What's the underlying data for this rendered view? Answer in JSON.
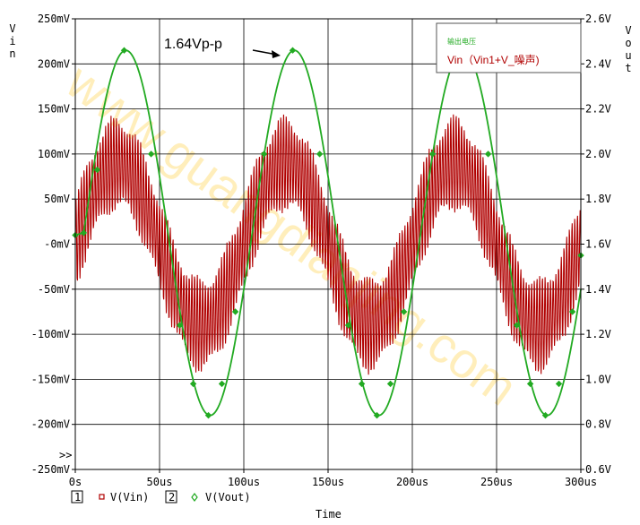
{
  "chart_data": {
    "type": "line",
    "xlabel": "Time",
    "xlim": [
      0,
      300
    ],
    "x_ticks": [
      "0s",
      "50us",
      "100us",
      "150us",
      "200us",
      "250us",
      "300us"
    ],
    "left_axis": {
      "label": "V i n",
      "ylim": [
        -250,
        250
      ],
      "ticks": [
        "250mV",
        "200mV",
        "150mV",
        "100mV",
        "50mV",
        "-0mV",
        "-50mV",
        "-100mV",
        "-150mV",
        "-200mV",
        "-250mV"
      ]
    },
    "right_axis": {
      "label": "V o u t",
      "ylim": [
        0.6,
        2.6
      ],
      "ticks": [
        "2.6V",
        "2.4V",
        "2.2V",
        "2.0V",
        "1.8V",
        "1.6V",
        "1.4V",
        "1.2V",
        "1.0V",
        "0.8V",
        "0.6V"
      ]
    },
    "grid": true,
    "annotation": "1.64Vp-p",
    "inset_legend": {
      "line1": "输出电压",
      "line2": "Vin（Vin1+V_噪声)"
    },
    "legend": [
      {
        "index": "1",
        "marker": "□",
        "name": "V(Vin)"
      },
      {
        "index": "2",
        "marker": "◇",
        "name": "V(Vout)"
      }
    ],
    "scroll_marker": ">>",
    "watermark": "www.guangdianjing.com",
    "series": [
      {
        "name": "V(Vin)",
        "axis": "left",
        "color": "#b00000",
        "description_values": {
          "signal_amplitude_mV": 90,
          "signal_period_us": 100,
          "signal_peak_time_us": 25,
          "noise_amplitude_mV": 55
        },
        "x": [
          0,
          25,
          50,
          75,
          100,
          125,
          150,
          175,
          200,
          225,
          250,
          275,
          300
        ],
        "center_values": [
          0,
          90,
          0,
          -90,
          0,
          90,
          0,
          -90,
          0,
          90,
          0,
          -90,
          0
        ]
      },
      {
        "name": "V(Vout)",
        "axis": "right",
        "color": "#22aa22",
        "x": [
          0,
          5,
          13,
          29,
          45,
          62,
          70,
          79,
          87,
          95,
          112,
          129,
          145,
          162,
          170,
          179,
          187,
          195,
          212,
          229,
          245,
          262,
          270,
          279,
          287,
          295,
          300
        ],
        "values": [
          1.64,
          1.65,
          1.93,
          2.46,
          2.0,
          1.24,
          0.98,
          0.84,
          0.98,
          1.3,
          2.0,
          2.46,
          2.0,
          1.24,
          0.98,
          0.84,
          0.98,
          1.3,
          2.0,
          2.46,
          2.0,
          1.24,
          0.98,
          0.84,
          0.98,
          1.3,
          1.55
        ]
      }
    ]
  },
  "colors": {
    "vin": "#b00000",
    "vout": "#22aa22",
    "watermark": "#ffd040",
    "grid": "#000000"
  }
}
